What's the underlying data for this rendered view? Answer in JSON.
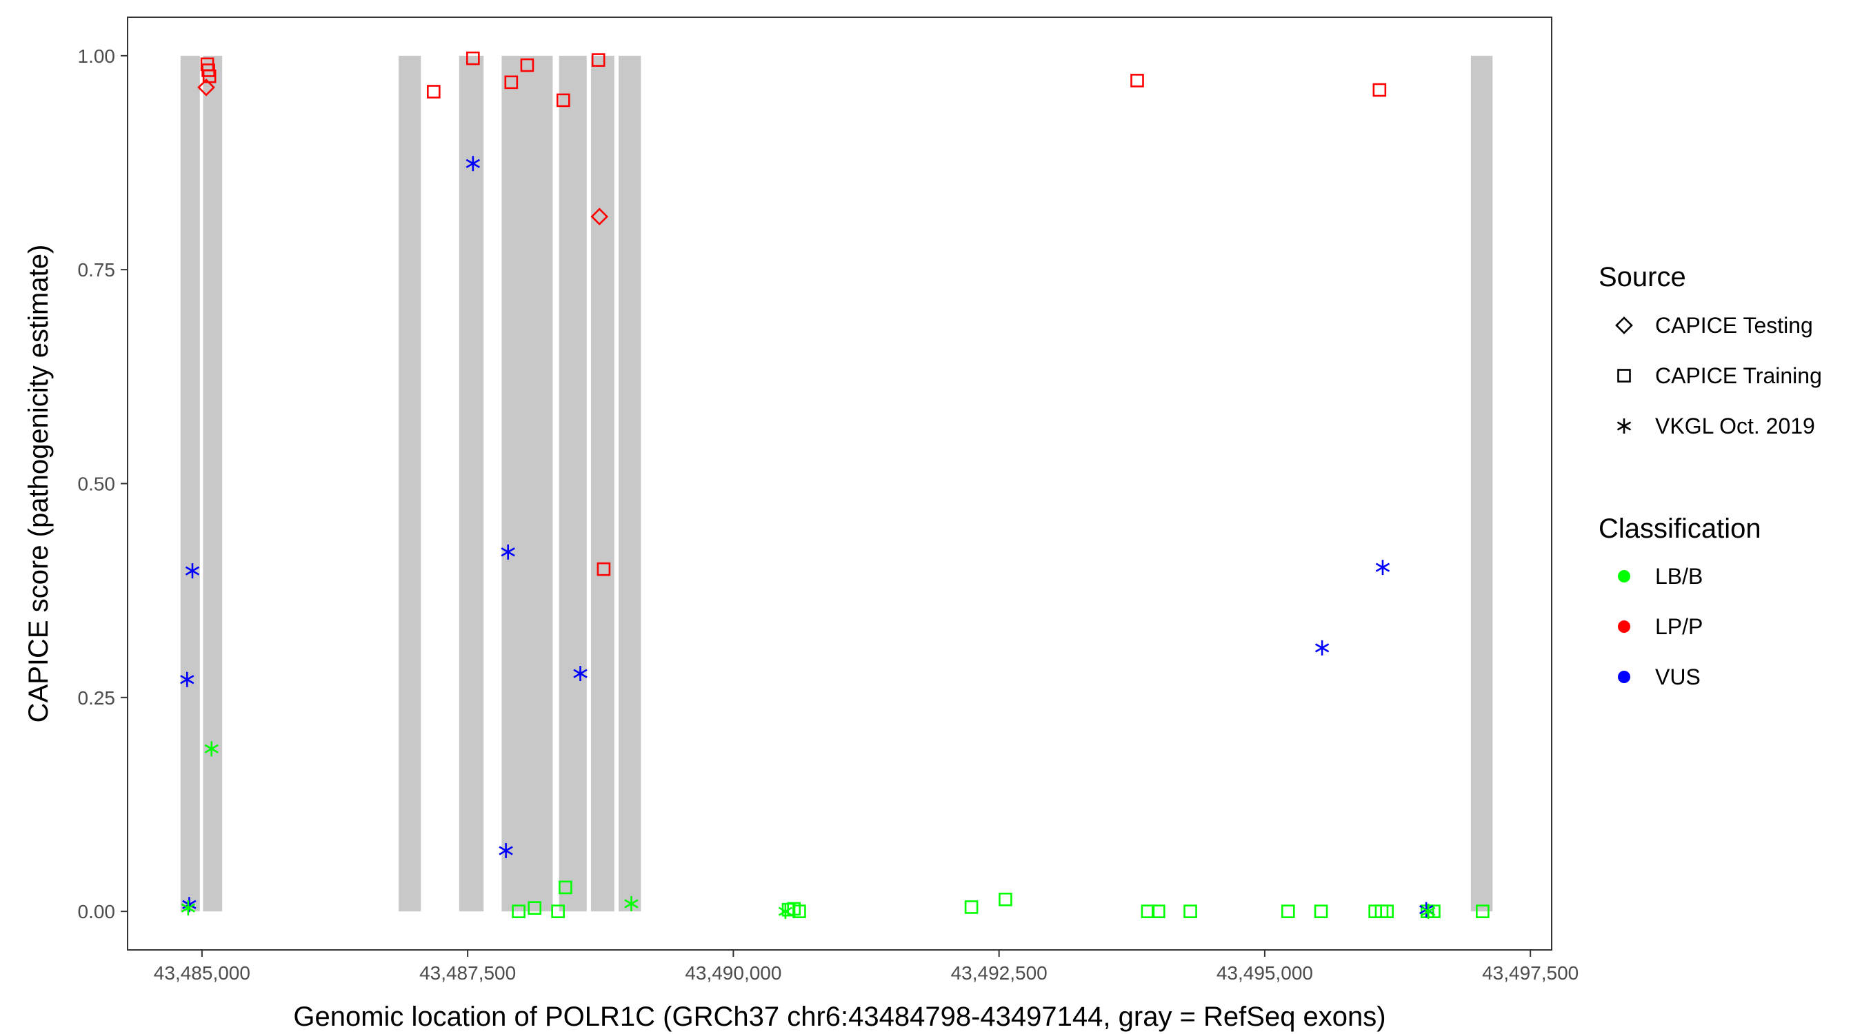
{
  "chart_data": {
    "type": "scatter",
    "title": "",
    "xlabel": "Genomic location of POLR1C (GRCh37 chr6:43484798-43497144, gray = RefSeq exons)",
    "ylabel": "CAPICE score (pathogenicity estimate)",
    "xlim": [
      43484300,
      43497700
    ],
    "ylim": [
      -0.045,
      1.045
    ],
    "x_ticks": [
      43485000,
      43487500,
      43490000,
      43492500,
      43495000,
      43497500
    ],
    "x_tick_labels": [
      "43,485,000",
      "43,487,500",
      "43,490,000",
      "43,492,500",
      "43,495,000",
      "43,497,500"
    ],
    "y_ticks": [
      0,
      0.25,
      0.5,
      0.75,
      1
    ],
    "y_tick_labels": [
      "0.00",
      "0.25",
      "0.50",
      "0.75",
      "1.00"
    ],
    "grid": false,
    "exons": [
      [
        43484798,
        43484980
      ],
      [
        43485010,
        43485190
      ],
      [
        43486850,
        43487060
      ],
      [
        43487420,
        43487650
      ],
      [
        43487820,
        43488300
      ],
      [
        43488360,
        43488620
      ],
      [
        43488660,
        43488880
      ],
      [
        43488920,
        43489130
      ],
      [
        43496940,
        43497144
      ]
    ],
    "legend": {
      "position": "right",
      "source_title": "Source",
      "source_items": [
        {
          "label": "CAPICE Testing",
          "shape": "diamond"
        },
        {
          "label": "CAPICE Training",
          "shape": "square"
        },
        {
          "label": "VKGL Oct. 2019",
          "shape": "asterisk"
        }
      ],
      "class_title": "Classification",
      "class_items": [
        {
          "label": "LB/B",
          "color": "#00ff00"
        },
        {
          "label": "LP/P",
          "color": "#ff0000"
        },
        {
          "label": "VUS",
          "color": "#0000ff"
        }
      ]
    },
    "series": [
      {
        "name": "CAPICE Testing",
        "shape": "diamond",
        "points": [
          {
            "x": 43485040,
            "y": 0.963,
            "class": "LP/P"
          },
          {
            "x": 43488740,
            "y": 0.812,
            "class": "LP/P"
          }
        ]
      },
      {
        "name": "CAPICE Training",
        "shape": "square",
        "points": [
          {
            "x": 43485050,
            "y": 0.99,
            "class": "LP/P"
          },
          {
            "x": 43485060,
            "y": 0.983,
            "class": "LP/P"
          },
          {
            "x": 43485070,
            "y": 0.976,
            "class": "LP/P"
          },
          {
            "x": 43487180,
            "y": 0.958,
            "class": "LP/P"
          },
          {
            "x": 43487550,
            "y": 0.997,
            "class": "LP/P"
          },
          {
            "x": 43487910,
            "y": 0.969,
            "class": "LP/P"
          },
          {
            "x": 43488060,
            "y": 0.989,
            "class": "LP/P"
          },
          {
            "x": 43488400,
            "y": 0.948,
            "class": "LP/P"
          },
          {
            "x": 43488730,
            "y": 0.995,
            "class": "LP/P"
          },
          {
            "x": 43488780,
            "y": 0.4,
            "class": "LP/P"
          },
          {
            "x": 43493800,
            "y": 0.971,
            "class": "LP/P"
          },
          {
            "x": 43496080,
            "y": 0.96,
            "class": "LP/P"
          },
          {
            "x": 43487980,
            "y": 0.0,
            "class": "LB/B"
          },
          {
            "x": 43488130,
            "y": 0.004,
            "class": "LB/B"
          },
          {
            "x": 43488350,
            "y": 0.0,
            "class": "LB/B"
          },
          {
            "x": 43488420,
            "y": 0.028,
            "class": "LB/B"
          },
          {
            "x": 43490520,
            "y": 0.002,
            "class": "LB/B"
          },
          {
            "x": 43490570,
            "y": 0.003,
            "class": "LB/B"
          },
          {
            "x": 43490620,
            "y": 0.0,
            "class": "LB/B"
          },
          {
            "x": 43492240,
            "y": 0.005,
            "class": "LB/B"
          },
          {
            "x": 43492560,
            "y": 0.014,
            "class": "LB/B"
          },
          {
            "x": 43493900,
            "y": 0.0,
            "class": "LB/B"
          },
          {
            "x": 43494000,
            "y": 0.0,
            "class": "LB/B"
          },
          {
            "x": 43494300,
            "y": 0.0,
            "class": "LB/B"
          },
          {
            "x": 43495220,
            "y": 0.0,
            "class": "LB/B"
          },
          {
            "x": 43495530,
            "y": 0.0,
            "class": "LB/B"
          },
          {
            "x": 43496040,
            "y": 0.0,
            "class": "LB/B"
          },
          {
            "x": 43496100,
            "y": 0.0,
            "class": "LB/B"
          },
          {
            "x": 43496150,
            "y": 0.0,
            "class": "LB/B"
          },
          {
            "x": 43496530,
            "y": 0.0,
            "class": "LB/B"
          },
          {
            "x": 43496590,
            "y": 0.0,
            "class": "LB/B"
          },
          {
            "x": 43497050,
            "y": 0.0,
            "class": "LB/B"
          }
        ]
      },
      {
        "name": "VKGL Oct. 2019",
        "shape": "asterisk",
        "points": [
          {
            "x": 43484860,
            "y": 0.271,
            "class": "VUS"
          },
          {
            "x": 43484910,
            "y": 0.398,
            "class": "VUS"
          },
          {
            "x": 43484880,
            "y": 0.008,
            "class": "VUS"
          },
          {
            "x": 43487550,
            "y": 0.874,
            "class": "VUS"
          },
          {
            "x": 43487880,
            "y": 0.42,
            "class": "VUS"
          },
          {
            "x": 43487860,
            "y": 0.071,
            "class": "VUS"
          },
          {
            "x": 43488560,
            "y": 0.278,
            "class": "VUS"
          },
          {
            "x": 43495540,
            "y": 0.308,
            "class": "VUS"
          },
          {
            "x": 43496110,
            "y": 0.402,
            "class": "VUS"
          },
          {
            "x": 43496520,
            "y": 0.002,
            "class": "VUS"
          },
          {
            "x": 43484870,
            "y": 0.004,
            "class": "LB/B"
          },
          {
            "x": 43485090,
            "y": 0.19,
            "class": "LB/B"
          },
          {
            "x": 43489040,
            "y": 0.009,
            "class": "LB/B"
          },
          {
            "x": 43490490,
            "y": 0.0,
            "class": "LB/B"
          },
          {
            "x": 43496540,
            "y": 0.0,
            "class": "LB/B"
          }
        ]
      }
    ]
  }
}
